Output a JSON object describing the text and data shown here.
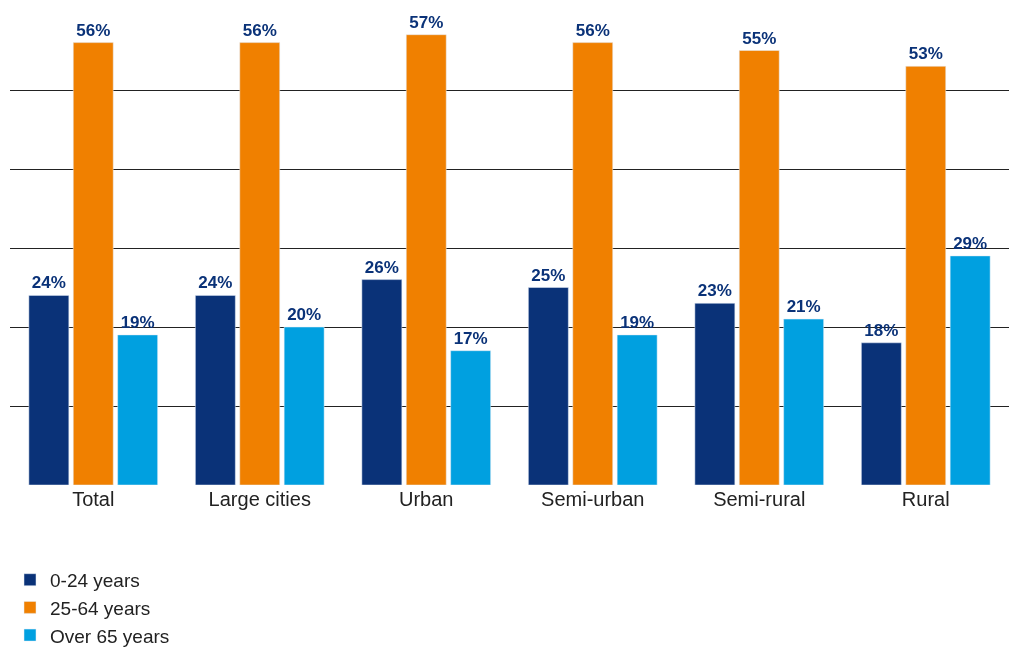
{
  "chart_data": {
    "type": "bar",
    "categories": [
      "Total",
      "Large cities",
      "Urban",
      "Semi-urban",
      "Semi-rural",
      "Rural"
    ],
    "series": [
      {
        "name": "0-24 years",
        "color": "#0a3278",
        "values": [
          24,
          24,
          26,
          25,
          23,
          18
        ],
        "value_labels": [
          "24%",
          "24%",
          "26%",
          "25%",
          "23%",
          "18%"
        ]
      },
      {
        "name": "25-64 years",
        "color": "#f08000",
        "values": [
          56,
          56,
          57,
          56,
          55,
          53
        ],
        "value_labels": [
          "56%",
          "56%",
          "57%",
          "56%",
          "55%",
          "53%"
        ]
      },
      {
        "name": "Over 65 years",
        "color": "#00a0e0",
        "values": [
          19,
          20,
          17,
          19,
          21,
          29
        ],
        "value_labels": [
          "19%",
          "20%",
          "17%",
          "19%",
          "21%",
          "29%"
        ]
      }
    ],
    "tick_labels": "x",
    "grid": "y",
    "legend": "bottom left"
  }
}
